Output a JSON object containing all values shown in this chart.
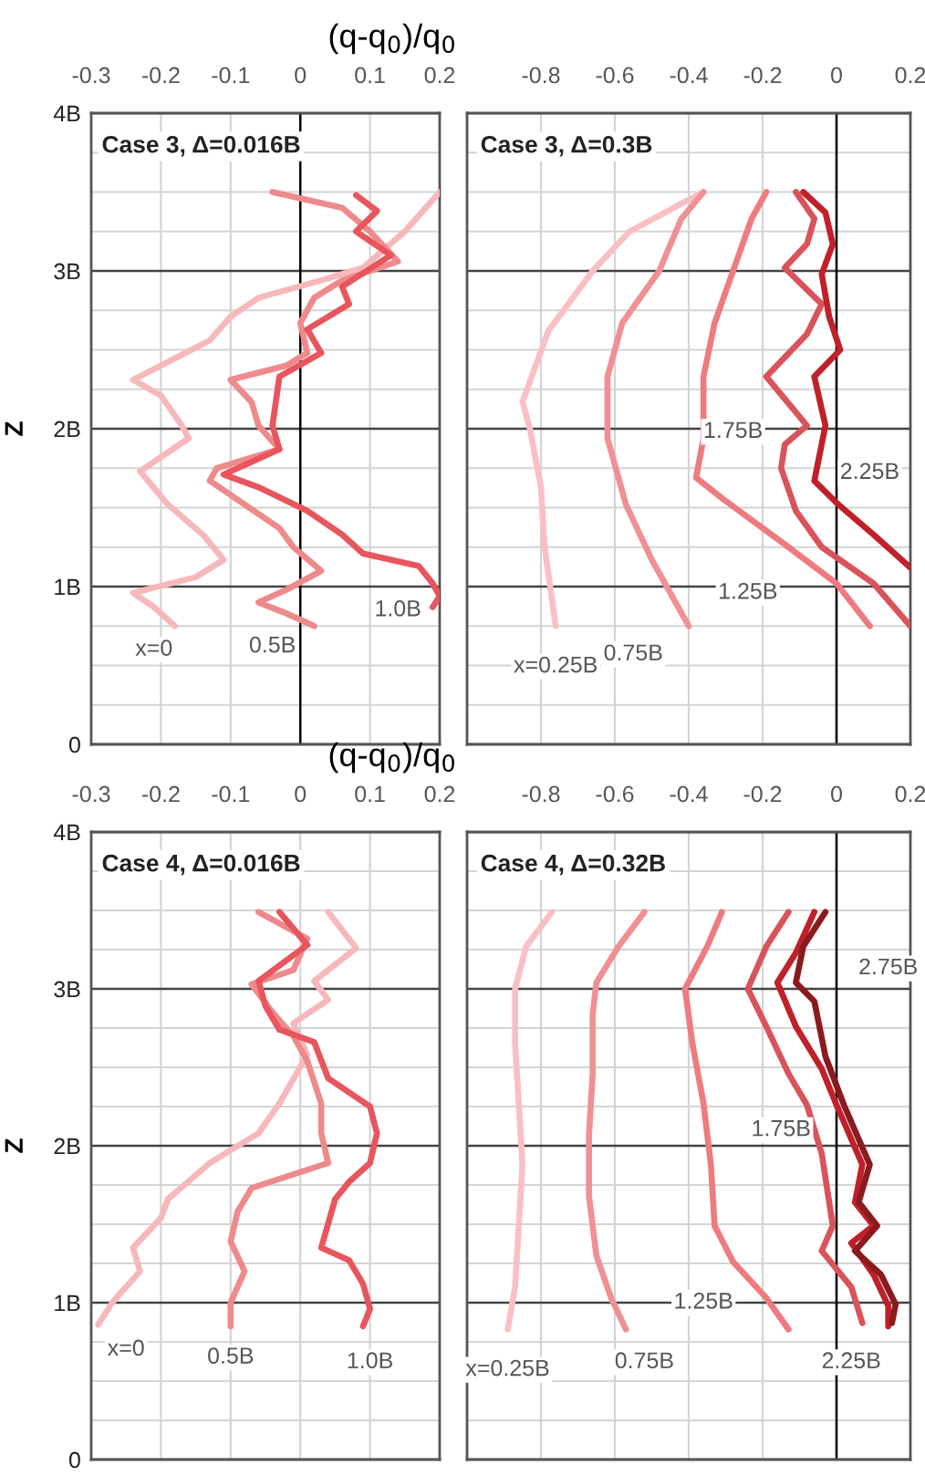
{
  "chart_data": [
    {
      "type": "line",
      "title": "Case 3, Δ=0.016B",
      "xlabel": "(q-q$_{0}$)/q$_{0}$",
      "ylabel": "Z",
      "xlim": [
        -0.3,
        0.2
      ],
      "xticks": [
        -0.3,
        -0.2,
        -0.1,
        0,
        0.1,
        0.2
      ],
      "ylim": [
        0,
        4
      ],
      "yticks": [
        0,
        {
          "value": 0.25,
          "label": null
        },
        {
          "value": 0.5,
          "label": null
        },
        {
          "value": 0.75,
          "label": null
        },
        {
          "value": 1,
          "label": "1B"
        },
        {
          "value": 1.25,
          "label": null
        },
        {
          "value": 1.5,
          "label": null
        },
        {
          "value": 1.75,
          "label": null
        },
        {
          "value": 2,
          "label": "2B"
        },
        {
          "value": 2.25,
          "label": null
        },
        {
          "value": 2.5,
          "label": null
        },
        {
          "value": 2.75,
          "label": null
        },
        {
          "value": 3,
          "label": "3B"
        },
        {
          "value": 3.25,
          "label": null
        },
        {
          "value": 3.5,
          "label": null
        },
        {
          "value": 3.75,
          "label": null
        },
        {
          "value": 4,
          "label": "4B"
        }
      ],
      "grid": true,
      "ref_lines": [
        {
          "axis": "x",
          "value": 0,
          "color": "#000000"
        }
      ],
      "series": [
        {
          "color": "#f7b8bb",
          "x": [
            0.2,
            0.15,
            0.09,
            0.03,
            -0.06,
            -0.1,
            -0.13,
            -0.2,
            -0.24,
            -0.2,
            -0.17,
            -0.16,
            -0.23,
            -0.19,
            -0.14,
            -0.11,
            -0.15,
            -0.24,
            -0.21,
            -0.18
          ],
          "values": [
            3.5,
            3.25,
            3.02,
            2.94,
            2.83,
            2.71,
            2.56,
            2.4,
            2.31,
            2.21,
            2.02,
            1.94,
            1.73,
            1.52,
            1.33,
            1.17,
            1.06,
            0.96,
            0.87,
            0.75
          ]
        },
        {
          "color": "#ee8a8c",
          "x": [
            -0.04,
            0.06,
            0.1,
            0.14,
            0.06,
            0.02,
            0,
            0.01,
            -0.02,
            -0.1,
            -0.07,
            -0.06,
            -0.03,
            -0.12,
            -0.13,
            -0.08,
            -0.03,
            -0.01,
            0.03,
            -0.02,
            -0.06,
            -0.02,
            0.02
          ],
          "values": [
            3.5,
            3.4,
            3.25,
            3.06,
            2.94,
            2.83,
            2.67,
            2.48,
            2.4,
            2.31,
            2.17,
            2.02,
            1.87,
            1.75,
            1.67,
            1.52,
            1.37,
            1.25,
            1.1,
            0.98,
            0.9,
            0.83,
            0.75
          ]
        },
        {
          "color": "#e8555d",
          "x": [
            0.08,
            0.11,
            0.08,
            0.13,
            0.06,
            0.07,
            0.01,
            0.03,
            -0.03,
            -0.04,
            -0.03,
            -0.11,
            -0.06,
            0.01,
            0.06,
            0.09,
            0.17,
            0.19,
            0.2,
            0.19
          ],
          "values": [
            3.48,
            3.38,
            3.25,
            3.1,
            2.9,
            2.79,
            2.63,
            2.48,
            2.33,
            2.02,
            1.87,
            1.71,
            1.63,
            1.48,
            1.33,
            1.21,
            1.13,
            1.02,
            0.94,
            0.87
          ]
        }
      ],
      "annotations": [
        {
          "text": "x=0",
          "x": -0.21,
          "y": 0.6
        },
        {
          "text": "0.5B",
          "x": -0.04,
          "y": 0.62
        },
        {
          "text": "1.0B",
          "x": 0.14,
          "y": 0.85
        }
      ]
    },
    {
      "type": "line",
      "title": "Case 3, Δ=0.3B",
      "xlim": [
        -1.0,
        0.2
      ],
      "xticks": [
        -0.8,
        -0.6,
        -0.4,
        -0.2,
        0,
        0.2
      ],
      "ylim": [
        0,
        4
      ],
      "tick_labels": "x",
      "yticks": [
        0,
        {
          "value": 0.25,
          "label": null
        },
        {
          "value": 0.5,
          "label": null
        },
        {
          "value": 0.75,
          "label": null
        },
        1,
        {
          "value": 1.25,
          "label": null
        },
        {
          "value": 1.5,
          "label": null
        },
        {
          "value": 1.75,
          "label": null
        },
        2,
        {
          "value": 2.25,
          "label": null
        },
        {
          "value": 2.5,
          "label": null
        },
        {
          "value": 2.75,
          "label": null
        },
        3,
        {
          "value": 3.25,
          "label": null
        },
        {
          "value": 3.5,
          "label": null
        },
        {
          "value": 3.75,
          "label": null
        },
        4
      ],
      "grid": true,
      "ref_lines": [
        {
          "axis": "x",
          "value": 0,
          "color": "#000000"
        }
      ],
      "series": [
        {
          "color": "#f9c0c3",
          "x": [
            -0.36,
            -0.56,
            -0.66,
            -0.78,
            -0.85,
            -0.83,
            -0.8,
            -0.79,
            -0.76
          ],
          "values": [
            3.5,
            3.25,
            3.0,
            2.62,
            2.17,
            2.0,
            1.63,
            1.25,
            0.75
          ]
        },
        {
          "color": "#f09094",
          "x": [
            -0.36,
            -0.42,
            -0.48,
            -0.58,
            -0.62,
            -0.62,
            -0.57,
            -0.5,
            -0.4
          ],
          "values": [
            3.5,
            3.33,
            3.0,
            2.67,
            2.33,
            1.94,
            1.52,
            1.17,
            0.75
          ]
        },
        {
          "color": "#ee7b80",
          "x": [
            -0.19,
            -0.23,
            -0.28,
            -0.33,
            -0.36,
            -0.36,
            -0.38,
            -0.31,
            -0.13,
            0,
            0.09
          ],
          "values": [
            3.5,
            3.33,
            3.0,
            2.67,
            2.33,
            1.94,
            1.69,
            1.56,
            1.25,
            1.02,
            0.75
          ]
        },
        {
          "color": "#d9535b",
          "x": [
            -0.11,
            -0.06,
            -0.08,
            -0.14,
            -0.04,
            -0.08,
            -0.19,
            -0.08,
            -0.14,
            -0.15,
            -0.11,
            -0.04,
            0.1,
            0.2
          ],
          "values": [
            3.5,
            3.33,
            3.17,
            3.02,
            2.79,
            2.6,
            2.33,
            2.02,
            1.9,
            1.75,
            1.48,
            1.25,
            1.02,
            0.75
          ]
        },
        {
          "color": "#c0202a",
          "x": [
            -0.09,
            -0.03,
            -0.01,
            -0.04,
            -0.02,
            0.01,
            -0.06,
            -0.03,
            -0.06,
            0.005,
            0.1,
            0.2
          ],
          "values": [
            3.5,
            3.37,
            3.17,
            2.98,
            2.71,
            2.5,
            2.33,
            2.02,
            1.67,
            1.52,
            1.33,
            1.12
          ]
        }
      ],
      "annotations": [
        "x=0.25B",
        {
          "text": "0.75B",
          "x": -0.55,
          "y": 0.57
        },
        {
          "text": "1.25B",
          "x": -0.24,
          "y": 0.96
        },
        {
          "text": "1.75B",
          "x": -0.28,
          "y": 1.98
        },
        {
          "text": "2.25B",
          "x": 0.09,
          "y": 1.72
        }
      ]
    },
    {
      "type": "line",
      "title": "Case 4, Δ=0.016B",
      "xlabel": "(q-q$_{0}$)/q$_{0}$",
      "ylabel": "Z",
      "xlim": [
        -0.3,
        0.2
      ],
      "xticks": [
        -0.3,
        -0.2,
        -0.1,
        0,
        0.1,
        0.2
      ],
      "ylim": [
        0,
        4
      ],
      "yticks": [
        0,
        {
          "value": 0.25,
          "label": null
        },
        {
          "value": 0.5,
          "label": null
        },
        {
          "value": 0.75,
          "label": null
        },
        {
          "value": 1,
          "label": "1B"
        },
        {
          "value": 1.25,
          "label": null
        },
        {
          "value": 1.5,
          "label": null
        },
        {
          "value": 1.75,
          "label": null
        },
        {
          "value": 2,
          "label": "2B"
        },
        {
          "value": 2.25,
          "label": null
        },
        {
          "value": 2.5,
          "label": null
        },
        {
          "value": 2.75,
          "label": null
        },
        {
          "value": 3,
          "label": "3B"
        },
        {
          "value": 3.25,
          "label": null
        },
        {
          "value": 3.5,
          "label": null
        },
        {
          "value": 3.75,
          "label": null
        },
        {
          "value": 4,
          "label": "4B"
        }
      ],
      "grid": true,
      "series": [
        {
          "color": "#f7b8bb",
          "x": [
            0.04,
            0.08,
            0.02,
            0.04,
            -0.01,
            0.01,
            -0.03,
            -0.06,
            -0.13,
            -0.19,
            -0.2,
            -0.24,
            -0.23,
            -0.27,
            -0.29
          ],
          "values": [
            3.49,
            3.26,
            3.05,
            2.93,
            2.78,
            2.58,
            2.27,
            2.08,
            1.89,
            1.66,
            1.54,
            1.35,
            1.2,
            1.0,
            0.86
          ]
        },
        {
          "color": "#ee8a8c",
          "x": [
            -0.06,
            0.01,
            -0.01,
            -0.07,
            -0.04,
            -0.01,
            0.01,
            0.03,
            0.03,
            0.04,
            -0.07,
            -0.09,
            -0.1,
            -0.08,
            -0.1,
            -0.1
          ],
          "values": [
            3.49,
            3.32,
            3.12,
            3.03,
            2.85,
            2.7,
            2.54,
            2.27,
            2.08,
            1.89,
            1.73,
            1.58,
            1.39,
            1.2,
            1.0,
            0.85
          ]
        },
        {
          "color": "#e8555d",
          "x": [
            -0.03,
            0.01,
            -0.06,
            -0.05,
            -0.03,
            0.02,
            0.04,
            0.1,
            0.11,
            0.1,
            0.07,
            0.05,
            0.03,
            0.07,
            0.09,
            0.1,
            0.09
          ],
          "values": [
            3.49,
            3.28,
            3.05,
            2.89,
            2.74,
            2.66,
            2.43,
            2.25,
            2.08,
            1.89,
            1.77,
            1.66,
            1.35,
            1.27,
            1.12,
            0.96,
            0.85
          ]
        }
      ],
      "annotations": [
        {
          "text": "x=0",
          "x": -0.25,
          "y": 0.7
        },
        {
          "text": "0.5B",
          "x": -0.1,
          "y": 0.65
        },
        {
          "text": "1.0B",
          "x": 0.1,
          "y": 0.62
        }
      ]
    },
    {
      "type": "line",
      "title": "Case 4, Δ=0.32B",
      "xlim": [
        -1.0,
        0.2
      ],
      "xticks": [
        -0.8,
        -0.6,
        -0.4,
        -0.2,
        0,
        0.2
      ],
      "ylim": [
        0,
        4
      ],
      "tick_labels": "x",
      "yticks": [
        0,
        {
          "value": 0.25,
          "label": null
        },
        {
          "value": 0.5,
          "label": null
        },
        {
          "value": 0.75,
          "label": null
        },
        1,
        {
          "value": 1.25,
          "label": null
        },
        {
          "value": 1.5,
          "label": null
        },
        {
          "value": 1.75,
          "label": null
        },
        2,
        {
          "value": 2.25,
          "label": null
        },
        {
          "value": 2.5,
          "label": null
        },
        {
          "value": 2.75,
          "label": null
        },
        3,
        {
          "value": 3.25,
          "label": null
        },
        {
          "value": 3.5,
          "label": null
        },
        {
          "value": 3.75,
          "label": null
        },
        4
      ],
      "grid": true,
      "ref_lines": [
        {
          "axis": "x",
          "value": 0,
          "color": "#000000"
        }
      ],
      "series": [
        {
          "color": "#f9c0c3",
          "x": [
            -0.77,
            -0.84,
            -0.87,
            -0.87,
            -0.86,
            -0.85,
            -0.86,
            -0.87,
            -0.89
          ],
          "values": [
            3.49,
            3.27,
            3.0,
            2.65,
            2.27,
            1.88,
            1.49,
            1.1,
            0.83
          ]
        },
        {
          "color": "#f09094",
          "x": [
            -0.52,
            -0.59,
            -0.65,
            -0.66,
            -0.66,
            -0.67,
            -0.67,
            -0.65,
            -0.61,
            -0.57
          ],
          "values": [
            3.49,
            3.27,
            3.04,
            2.84,
            2.46,
            2.07,
            1.68,
            1.3,
            1.03,
            0.83
          ]
        },
        {
          "color": "#ee7b80",
          "x": [
            -0.31,
            -0.35,
            -0.41,
            -0.39,
            -0.36,
            -0.34,
            -0.33,
            -0.28,
            -0.19,
            -0.13
          ],
          "values": [
            3.49,
            3.27,
            3.0,
            2.65,
            2.27,
            1.88,
            1.49,
            1.26,
            1.03,
            0.83
          ]
        },
        {
          "color": "#d9535b",
          "x": [
            -0.13,
            -0.19,
            -0.24,
            -0.19,
            -0.13,
            -0.08,
            -0.04,
            -0.01,
            -0.04,
            0.04,
            0.07
          ],
          "values": [
            3.49,
            3.27,
            3.0,
            2.76,
            2.46,
            2.26,
            1.95,
            1.49,
            1.33,
            1.1,
            0.87
          ]
        },
        {
          "color": "#c0202a",
          "x": [
            -0.06,
            -0.11,
            -0.16,
            -0.11,
            -0.04,
            0.0,
            0.07,
            0.05,
            0.1,
            0.04,
            0.1,
            0.14,
            0.14
          ],
          "values": [
            3.49,
            3.23,
            3.04,
            2.76,
            2.49,
            2.26,
            1.88,
            1.64,
            1.49,
            1.38,
            1.18,
            0.98,
            0.85
          ]
        },
        {
          "color": "#8b1a1e",
          "x": [
            -0.03,
            -0.09,
            -0.11,
            -0.06,
            -0.03,
            0.02,
            0.09,
            0.06,
            0.11,
            0.05,
            0.12,
            0.16,
            0.15
          ],
          "values": [
            3.49,
            3.27,
            3.04,
            2.92,
            2.57,
            2.26,
            1.88,
            1.64,
            1.49,
            1.33,
            1.18,
            0.99,
            0.87
          ]
        }
      ],
      "annotations": [
        "x=0.25B",
        {
          "text": "0.75B",
          "x": -0.52,
          "y": 0.62
        },
        {
          "text": "1.25B",
          "x": -0.36,
          "y": 1.0
        },
        {
          "text": "1.75B",
          "x": -0.15,
          "y": 2.1
        },
        {
          "text": "2.25B",
          "x": 0.04,
          "y": 0.62
        },
        {
          "text": "2.75B",
          "x": 0.14,
          "y": 3.13
        }
      ]
    }
  ]
}
